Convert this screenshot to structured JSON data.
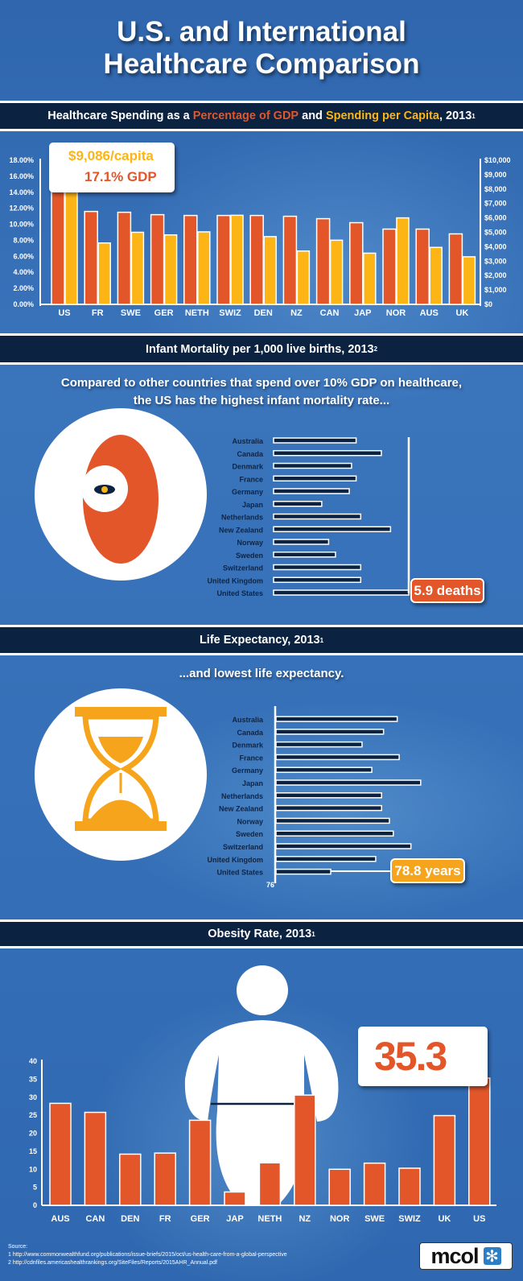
{
  "title": {
    "line1": "U.S. and International",
    "line2": "Healthcare Comparison"
  },
  "colors": {
    "orange": "#e2562a",
    "yellow": "#fcb515",
    "navy": "#0b2341",
    "label": "#0f2444",
    "hourglass": "#f7a41d"
  },
  "sections": {
    "spending": {
      "header_pre": "Healthcare Spending as a ",
      "header_gdp": "Percentage of GDP",
      "header_mid": " and ",
      "header_cap": "Spending per Capita",
      "header_post": ", 2013",
      "header_sup": "1",
      "callout_capita": "$9,086/capita",
      "callout_gdp": "17.1% GDP"
    },
    "infant": {
      "header": "Infant Mortality per 1,000 live births, 2013",
      "header_sup": "2",
      "subtitle1": "Compared to other countries that spend over 10% GDP on healthcare,",
      "subtitle2": "the US has the highest infant mortality rate...",
      "callout": "5.9 deaths",
      "icon": "baby-icon"
    },
    "life": {
      "header": "Life Expectancy, 2013",
      "header_sup": "1",
      "subtitle": "...and lowest life expectancy.",
      "callout": "78.8 years",
      "axis_min_label": "76",
      "icon": "hourglass-icon"
    },
    "obesity": {
      "header": "Obesity Rate, 2013",
      "header_sup": "1",
      "callout": "35.3",
      "icon": "person-icon"
    }
  },
  "chart_data": [
    {
      "type": "bar",
      "title": "Healthcare Spending as a Percentage of GDP and Spending per Capita, 2013",
      "categories": [
        "US",
        "FR",
        "SWE",
        "GER",
        "NETH",
        "SWIZ",
        "DEN",
        "NZ",
        "CAN",
        "JAP",
        "NOR",
        "AUS",
        "UK"
      ],
      "series": [
        {
          "name": "Percentage of GDP",
          "axis": "left",
          "values": [
            17.1,
            11.6,
            11.5,
            11.2,
            11.1,
            11.1,
            11.1,
            11.0,
            10.7,
            10.2,
            9.4,
            9.4,
            8.8
          ]
        },
        {
          "name": "Spending per Capita",
          "axis": "right",
          "values": [
            9086,
            4260,
            5000,
            4820,
            5030,
            6180,
            4700,
            3700,
            4450,
            3550,
            6000,
            3950,
            3300
          ]
        }
      ],
      "left_axis": {
        "ylim": [
          0,
          18
        ],
        "ticks": [
          "0.00%",
          "2.00%",
          "4.00%",
          "6.00%",
          "8.00%",
          "10.00%",
          "12.00%",
          "14.00%",
          "16.00%",
          "18.00%"
        ]
      },
      "right_axis": {
        "ylim": [
          0,
          10000
        ],
        "ticks": [
          "$0",
          "$1,000",
          "$2,000",
          "$3,000",
          "$4,000",
          "$5,000",
          "$6,000",
          "$7,000",
          "$8,000",
          "$9,000",
          "$10,000"
        ]
      }
    },
    {
      "type": "bar",
      "orientation": "horizontal",
      "title": "Infant Mortality per 1,000 live births, 2013",
      "categories": [
        "Australia",
        "Canada",
        "Denmark",
        "France",
        "Germany",
        "Japan",
        "Netherlands",
        "New Zealand",
        "Norway",
        "Sweden",
        "Switzerland",
        "United Kingdom",
        "United States"
      ],
      "values": [
        3.6,
        4.7,
        3.4,
        3.6,
        3.3,
        2.1,
        3.8,
        5.1,
        2.4,
        2.7,
        3.8,
        3.8,
        5.9
      ],
      "xlim": [
        0,
        5.9
      ]
    },
    {
      "type": "bar",
      "orientation": "horizontal",
      "title": "Life Expectancy, 2013",
      "categories": [
        "Australia",
        "Canada",
        "Denmark",
        "France",
        "Germany",
        "Japan",
        "Netherlands",
        "New Zealand",
        "Norway",
        "Sweden",
        "Switzerland",
        "United Kingdom",
        "United States"
      ],
      "values": [
        82.2,
        81.5,
        80.4,
        82.3,
        80.9,
        83.4,
        81.4,
        81.4,
        81.8,
        82.0,
        82.9,
        81.1,
        78.8
      ],
      "xlim": [
        76,
        84
      ]
    },
    {
      "type": "bar",
      "title": "Obesity Rate, 2013",
      "categories": [
        "AUS",
        "CAN",
        "DEN",
        "FR",
        "GER",
        "JAP",
        "NETH",
        "NZ",
        "NOR",
        "SWE",
        "SWIZ",
        "UK",
        "US"
      ],
      "values": [
        28.3,
        25.8,
        14.2,
        14.5,
        23.6,
        3.7,
        11.8,
        30.6,
        10.0,
        11.7,
        10.3,
        24.9,
        35.3
      ],
      "ylim": [
        0,
        40
      ],
      "ticks": [
        "0",
        "5",
        "10",
        "15",
        "20",
        "25",
        "30",
        "35",
        "40"
      ]
    }
  ],
  "sources": {
    "label": "Source:",
    "items": [
      "1  http://www.commonwealthfund.org/publications/issue-briefs/2015/oct/us-health-care-from-a-global-perspective",
      "2  http://cdnfiles.americashealthrankings.org/SiteFiles/Reports/2015AHR_Annual.pdf"
    ]
  },
  "logo": {
    "text": "mcol",
    "icon": "asterisk-icon"
  }
}
